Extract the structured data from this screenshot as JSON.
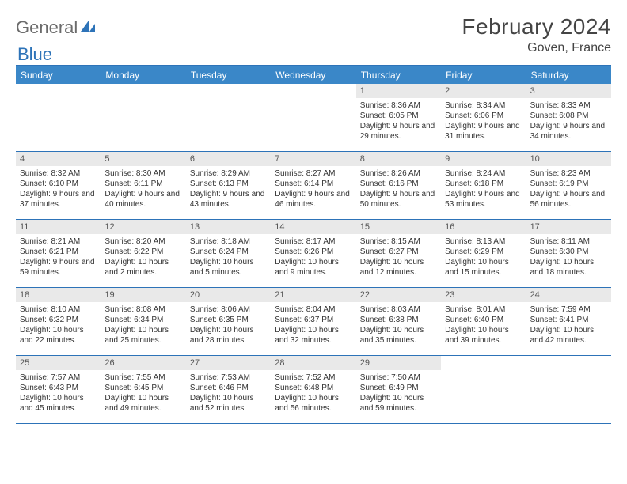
{
  "logo": {
    "text1": "General",
    "text2": "Blue"
  },
  "title": "February 2024",
  "location": "Goven, France",
  "colors": {
    "header_bg": "#3a87c8",
    "border": "#2d73b8",
    "daynum_bg": "#e9e9e9",
    "text": "#333333",
    "title_text": "#444444",
    "logo_gray": "#6b6b6b",
    "logo_blue": "#2d73b8"
  },
  "weekdays": [
    "Sunday",
    "Monday",
    "Tuesday",
    "Wednesday",
    "Thursday",
    "Friday",
    "Saturday"
  ],
  "weeks": [
    [
      {
        "n": "",
        "empty": true
      },
      {
        "n": "",
        "empty": true
      },
      {
        "n": "",
        "empty": true
      },
      {
        "n": "",
        "empty": true
      },
      {
        "n": "1",
        "sunrise": "8:36 AM",
        "sunset": "6:05 PM",
        "daylight": "9 hours and 29 minutes."
      },
      {
        "n": "2",
        "sunrise": "8:34 AM",
        "sunset": "6:06 PM",
        "daylight": "9 hours and 31 minutes."
      },
      {
        "n": "3",
        "sunrise": "8:33 AM",
        "sunset": "6:08 PM",
        "daylight": "9 hours and 34 minutes."
      }
    ],
    [
      {
        "n": "4",
        "sunrise": "8:32 AM",
        "sunset": "6:10 PM",
        "daylight": "9 hours and 37 minutes."
      },
      {
        "n": "5",
        "sunrise": "8:30 AM",
        "sunset": "6:11 PM",
        "daylight": "9 hours and 40 minutes."
      },
      {
        "n": "6",
        "sunrise": "8:29 AM",
        "sunset": "6:13 PM",
        "daylight": "9 hours and 43 minutes."
      },
      {
        "n": "7",
        "sunrise": "8:27 AM",
        "sunset": "6:14 PM",
        "daylight": "9 hours and 46 minutes."
      },
      {
        "n": "8",
        "sunrise": "8:26 AM",
        "sunset": "6:16 PM",
        "daylight": "9 hours and 50 minutes."
      },
      {
        "n": "9",
        "sunrise": "8:24 AM",
        "sunset": "6:18 PM",
        "daylight": "9 hours and 53 minutes."
      },
      {
        "n": "10",
        "sunrise": "8:23 AM",
        "sunset": "6:19 PM",
        "daylight": "9 hours and 56 minutes."
      }
    ],
    [
      {
        "n": "11",
        "sunrise": "8:21 AM",
        "sunset": "6:21 PM",
        "daylight": "9 hours and 59 minutes."
      },
      {
        "n": "12",
        "sunrise": "8:20 AM",
        "sunset": "6:22 PM",
        "daylight": "10 hours and 2 minutes."
      },
      {
        "n": "13",
        "sunrise": "8:18 AM",
        "sunset": "6:24 PM",
        "daylight": "10 hours and 5 minutes."
      },
      {
        "n": "14",
        "sunrise": "8:17 AM",
        "sunset": "6:26 PM",
        "daylight": "10 hours and 9 minutes."
      },
      {
        "n": "15",
        "sunrise": "8:15 AM",
        "sunset": "6:27 PM",
        "daylight": "10 hours and 12 minutes."
      },
      {
        "n": "16",
        "sunrise": "8:13 AM",
        "sunset": "6:29 PM",
        "daylight": "10 hours and 15 minutes."
      },
      {
        "n": "17",
        "sunrise": "8:11 AM",
        "sunset": "6:30 PM",
        "daylight": "10 hours and 18 minutes."
      }
    ],
    [
      {
        "n": "18",
        "sunrise": "8:10 AM",
        "sunset": "6:32 PM",
        "daylight": "10 hours and 22 minutes."
      },
      {
        "n": "19",
        "sunrise": "8:08 AM",
        "sunset": "6:34 PM",
        "daylight": "10 hours and 25 minutes."
      },
      {
        "n": "20",
        "sunrise": "8:06 AM",
        "sunset": "6:35 PM",
        "daylight": "10 hours and 28 minutes."
      },
      {
        "n": "21",
        "sunrise": "8:04 AM",
        "sunset": "6:37 PM",
        "daylight": "10 hours and 32 minutes."
      },
      {
        "n": "22",
        "sunrise": "8:03 AM",
        "sunset": "6:38 PM",
        "daylight": "10 hours and 35 minutes."
      },
      {
        "n": "23",
        "sunrise": "8:01 AM",
        "sunset": "6:40 PM",
        "daylight": "10 hours and 39 minutes."
      },
      {
        "n": "24",
        "sunrise": "7:59 AM",
        "sunset": "6:41 PM",
        "daylight": "10 hours and 42 minutes."
      }
    ],
    [
      {
        "n": "25",
        "sunrise": "7:57 AM",
        "sunset": "6:43 PM",
        "daylight": "10 hours and 45 minutes."
      },
      {
        "n": "26",
        "sunrise": "7:55 AM",
        "sunset": "6:45 PM",
        "daylight": "10 hours and 49 minutes."
      },
      {
        "n": "27",
        "sunrise": "7:53 AM",
        "sunset": "6:46 PM",
        "daylight": "10 hours and 52 minutes."
      },
      {
        "n": "28",
        "sunrise": "7:52 AM",
        "sunset": "6:48 PM",
        "daylight": "10 hours and 56 minutes."
      },
      {
        "n": "29",
        "sunrise": "7:50 AM",
        "sunset": "6:49 PM",
        "daylight": "10 hours and 59 minutes."
      },
      {
        "n": "",
        "empty": true
      },
      {
        "n": "",
        "empty": true
      }
    ]
  ],
  "labels": {
    "sunrise_prefix": "Sunrise: ",
    "sunset_prefix": "Sunset: ",
    "daylight_prefix": "Daylight: "
  }
}
